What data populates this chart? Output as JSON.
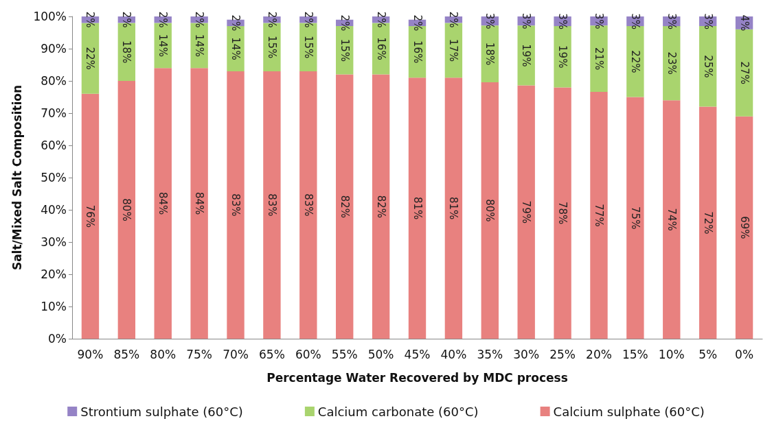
{
  "chart_data": {
    "type": "bar",
    "stacked": true,
    "xlabel": "Percentage Water Recovered by MDC process",
    "ylabel": "Salt/Mixed Salt Composition",
    "categories": [
      "90%",
      "85%",
      "80%",
      "75%",
      "70%",
      "65%",
      "60%",
      "55%",
      "50%",
      "45%",
      "40%",
      "35%",
      "30%",
      "25%",
      "20%",
      "15%",
      "10%",
      "5%",
      "0%"
    ],
    "series": [
      {
        "name": "Calcium sulphate (60°C)",
        "color": "#e8817f",
        "values": [
          76,
          80,
          84,
          84,
          83,
          83,
          83,
          82,
          82,
          81,
          81,
          79.6,
          78.6,
          78,
          76.6,
          75,
          74,
          72,
          69
        ],
        "value_labels": [
          "76%",
          "80%",
          "84%",
          "84%",
          "83%",
          "83%",
          "83%",
          "82%",
          "82%",
          "81%",
          "81%",
          "80%",
          "79%",
          "78%",
          "77%",
          "75%",
          "74%",
          "72%",
          "69%"
        ]
      },
      {
        "name": "Calcium carbonate (60°C)",
        "color": "#a9d46e",
        "values": [
          22,
          18,
          14,
          14,
          14,
          15,
          15,
          15,
          16,
          16,
          17,
          17.6,
          18.6,
          19,
          20.6,
          22,
          23,
          25,
          27
        ],
        "value_labels": [
          "22%",
          "18%",
          "14%",
          "14%",
          "14%",
          "15%",
          "15%",
          "15%",
          "16%",
          "16%",
          "17%",
          "18%",
          "19%",
          "19%",
          "21%",
          "22%",
          "23%",
          "25%",
          "27%"
        ]
      },
      {
        "name": "Strontium sulphate (60°C)",
        "color": "#9583c6",
        "values": [
          2,
          2,
          2,
          2,
          2,
          2,
          2,
          2,
          2,
          2,
          2,
          2.8,
          2.8,
          3,
          2.8,
          3,
          3,
          3,
          4
        ],
        "value_labels": [
          "2%",
          "2%",
          "2%",
          "2%",
          "2%",
          "2%",
          "2%",
          "2%",
          "2%",
          "2%",
          "2%",
          "3%",
          "3%",
          "3%",
          "3%",
          "3%",
          "3%",
          "3%",
          "4%"
        ]
      }
    ],
    "ylim": [
      0,
      100
    ],
    "yticks": [
      {
        "value": 0,
        "label": "0%"
      },
      {
        "value": 10,
        "label": "10%"
      },
      {
        "value": 20,
        "label": "20%"
      },
      {
        "value": 30,
        "label": "30%"
      },
      {
        "value": 40,
        "label": "40%"
      },
      {
        "value": 50,
        "label": "50%"
      },
      {
        "value": 60,
        "label": "60%"
      },
      {
        "value": 70,
        "label": "70%"
      },
      {
        "value": 80,
        "label": "80%"
      },
      {
        "value": 90,
        "label": "90%"
      },
      {
        "value": 100,
        "label": "100%"
      }
    ],
    "legend": "bottom"
  }
}
